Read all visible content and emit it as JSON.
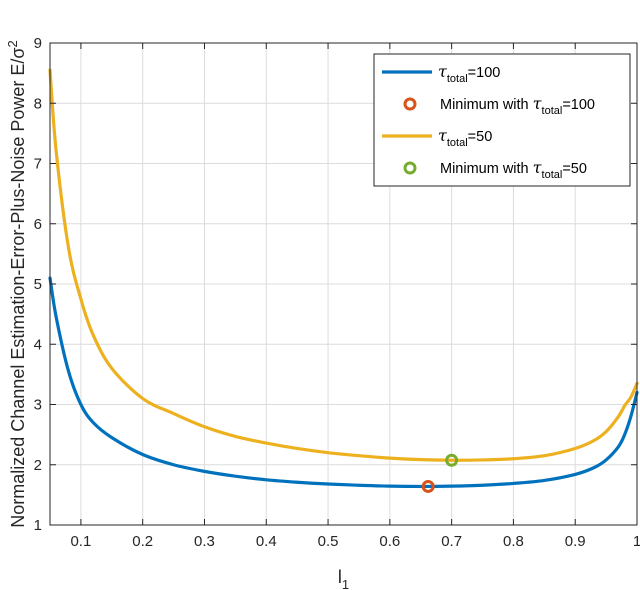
{
  "chart_data": {
    "type": "line",
    "xlabel": "l",
    "xlabel_sub": "1",
    "ylabel": "Normalized Channel Estimation-Error-Plus-Noise Power E/σ",
    "ylabel_sup": "2",
    "xlim": [
      0.05,
      1.0
    ],
    "ylim": [
      1,
      9
    ],
    "grid": true,
    "x_ticks": [
      0.1,
      0.2,
      0.3,
      0.4,
      0.5,
      0.6,
      0.7,
      0.8,
      0.9,
      1
    ],
    "x_tick_labels": [
      "0.1",
      "0.2",
      "0.3",
      "0.4",
      "0.5",
      "0.6",
      "0.7",
      "0.8",
      "0.9",
      "1"
    ],
    "y_ticks": [
      1,
      2,
      3,
      4,
      5,
      6,
      7,
      8,
      9
    ],
    "y_tick_labels": [
      "1",
      "2",
      "3",
      "4",
      "5",
      "6",
      "7",
      "8",
      "9"
    ],
    "legend_position": "top-right",
    "series": [
      {
        "name": "τ_total=100",
        "legend_symbol": "τ",
        "legend_sub": "total",
        "legend_suffix": "=100",
        "color": "#0072BD",
        "x": [
          0.05,
          0.06,
          0.08,
          0.1,
          0.12,
          0.15,
          0.2,
          0.25,
          0.3,
          0.35,
          0.4,
          0.45,
          0.5,
          0.55,
          0.6,
          0.65,
          0.7,
          0.75,
          0.8,
          0.85,
          0.9,
          0.93,
          0.95,
          0.97,
          0.98,
          0.99,
          1.0
        ],
        "y": [
          5.1,
          4.45,
          3.55,
          3.0,
          2.7,
          2.45,
          2.17,
          2.0,
          1.89,
          1.81,
          1.75,
          1.71,
          1.68,
          1.66,
          1.645,
          1.64,
          1.645,
          1.66,
          1.69,
          1.74,
          1.84,
          1.95,
          2.08,
          2.3,
          2.5,
          2.8,
          3.2
        ]
      },
      {
        "name": "τ_total=50",
        "legend_symbol": "τ",
        "legend_sub": "total",
        "legend_suffix": "=50",
        "color": "#EDB120",
        "x": [
          0.05,
          0.06,
          0.08,
          0.1,
          0.12,
          0.15,
          0.2,
          0.25,
          0.3,
          0.35,
          0.4,
          0.45,
          0.5,
          0.55,
          0.6,
          0.65,
          0.7,
          0.75,
          0.8,
          0.85,
          0.9,
          0.93,
          0.95,
          0.97,
          0.98,
          0.99,
          1.0
        ],
        "y": [
          8.55,
          7.2,
          5.6,
          4.75,
          4.15,
          3.6,
          3.1,
          2.85,
          2.63,
          2.47,
          2.36,
          2.27,
          2.2,
          2.15,
          2.11,
          2.085,
          2.075,
          2.08,
          2.1,
          2.15,
          2.27,
          2.4,
          2.55,
          2.8,
          2.98,
          3.12,
          3.35
        ]
      }
    ],
    "markers": [
      {
        "name": "Minimum with τ_total=100",
        "legend_prefix": "Minimum with ",
        "legend_symbol": "τ",
        "legend_sub": "total",
        "legend_suffix": "=100",
        "color": "#D95319",
        "x": 0.662,
        "y": 1.64
      },
      {
        "name": "Minimum with τ_total=50",
        "legend_prefix": "Minimum with ",
        "legend_symbol": "τ",
        "legend_sub": "total",
        "legend_suffix": "=50",
        "color": "#77AC30",
        "x": 0.7,
        "y": 2.075
      }
    ]
  }
}
